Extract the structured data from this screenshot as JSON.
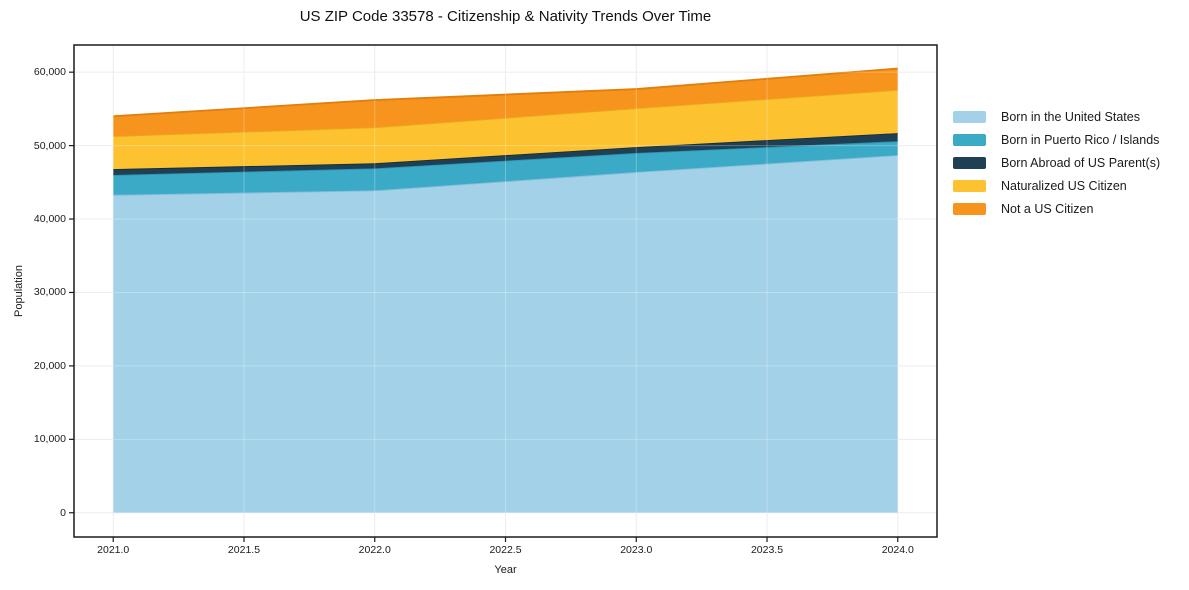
{
  "chart_data": {
    "type": "area",
    "stacked": true,
    "title": "US ZIP Code 33578 - Citizenship & Nativity Trends Over Time",
    "xlabel": "Year",
    "ylabel": "Population",
    "x": [
      2021,
      2022,
      2023,
      2024
    ],
    "series": [
      {
        "name": "Born in the United States",
        "color": "#a3d1e8",
        "edge": "#85bcd9",
        "values": [
          43300,
          43900,
          46400,
          48700
        ]
      },
      {
        "name": "Born in Puerto Rico / Islands",
        "color": "#3baac7",
        "edge": "#2e93ae",
        "values": [
          2700,
          3000,
          2600,
          1900
        ]
      },
      {
        "name": "Born Abroad of US Parent(s)",
        "color": "#1f4054",
        "edge": "#152e3d",
        "values": [
          800,
          700,
          800,
          1100
        ]
      },
      {
        "name": "Naturalized US Citizen",
        "color": "#fcc22f",
        "edge": "#e9a81a",
        "values": [
          4500,
          4900,
          5300,
          5900
        ]
      },
      {
        "name": "Not a US Citizen",
        "color": "#f7941d",
        "edge": "#e07f0c",
        "values": [
          2700,
          3700,
          2600,
          2900
        ]
      }
    ],
    "totals": [
      54000,
      56200,
      57700,
      60500
    ],
    "x_ticks": [
      "2021.0",
      "2021.5",
      "2022.0",
      "2022.5",
      "2023.0",
      "2023.5",
      "2024.0"
    ],
    "x_tick_values": [
      2021,
      2021.5,
      2022,
      2022.5,
      2023,
      2023.5,
      2024
    ],
    "y_ticks": [
      "0",
      "10,000",
      "20,000",
      "30,000",
      "40,000",
      "50,000",
      "60,000"
    ],
    "y_tick_values": [
      0,
      10000,
      20000,
      30000,
      40000,
      50000,
      60000
    ],
    "xlim": [
      2020.85,
      2024.15
    ],
    "ylim": [
      -3300,
      63700
    ],
    "grid": true,
    "legend_position": "right-outside",
    "frame_color": "#1a1a1a",
    "grid_color": "#e7e7e7"
  }
}
